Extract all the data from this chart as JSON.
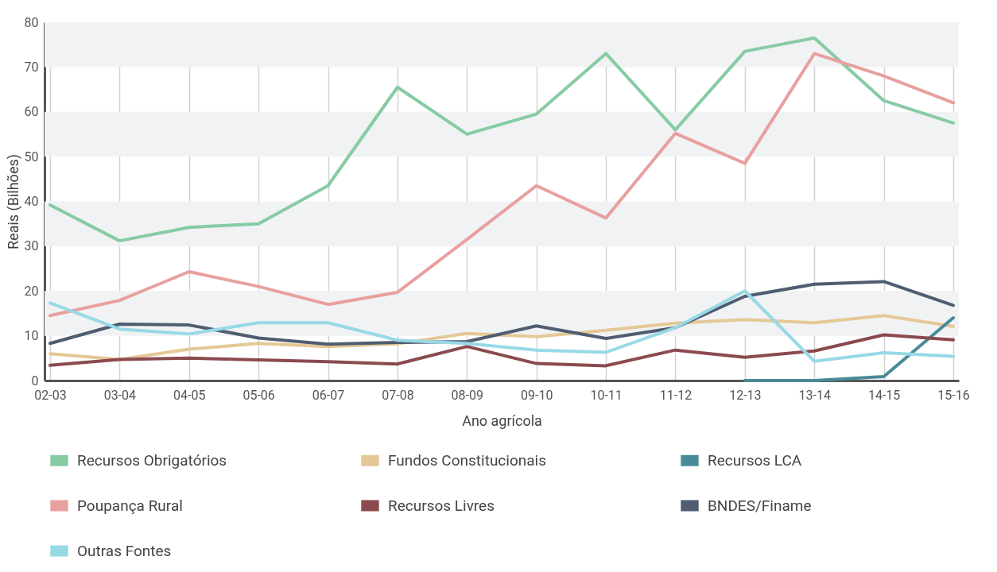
{
  "chart_data": {
    "type": "line",
    "xlabel": "Ano agrícola",
    "ylabel": "Reais (Bilhões)",
    "categories": [
      "02-03",
      "03-04",
      "04-05",
      "05-06",
      "06-07",
      "07-08",
      "08-09",
      "09-10",
      "10-11",
      "11-12",
      "12-13",
      "13-14",
      "14-15",
      "15-16"
    ],
    "ylim": [
      0,
      80
    ],
    "yticks": [
      0,
      10,
      20,
      30,
      40,
      50,
      60,
      70,
      80
    ],
    "grid": true,
    "legend": "bottom",
    "series": [
      {
        "name": "Recursos Obrigatórios",
        "color": "#86cba4",
        "values": [
          39.2,
          31.2,
          34.2,
          35,
          43.5,
          65.5,
          55,
          59.5,
          73,
          56,
          73.5,
          76.5,
          62.5,
          57.5
        ]
      },
      {
        "name": "Fundos Constitucionais",
        "color": "#e4c896",
        "values": [
          6,
          4.7,
          7,
          8.3,
          7.6,
          8.2,
          10.5,
          9.8,
          11.2,
          12.8,
          13.6,
          12.9,
          14.5,
          12.1
        ]
      },
      {
        "name": "Recursos LCA",
        "color": "#4a8a98",
        "values": [
          null,
          null,
          null,
          null,
          null,
          null,
          null,
          null,
          null,
          null,
          0,
          0,
          0.9,
          14
        ]
      },
      {
        "name": "Poupança Rural",
        "color": "#e8a09f",
        "values": [
          14.5,
          17.9,
          24.3,
          21,
          17,
          19.7,
          31.5,
          43.5,
          36.3,
          55.2,
          48.5,
          73,
          68,
          62
        ]
      },
      {
        "name": "Recursos Livres",
        "color": "#8b4a4e",
        "values": [
          3.4,
          4.7,
          5,
          4.6,
          4.2,
          3.7,
          7.6,
          3.8,
          3.3,
          6.8,
          5.2,
          6.6,
          10.2,
          9.1
        ]
      },
      {
        "name": "BNDES/Finame",
        "color": "#4f5d70",
        "values": [
          8.3,
          12.6,
          12.4,
          9.5,
          8.1,
          8.5,
          8.7,
          12.2,
          9.4,
          11.8,
          18.8,
          21.5,
          22.1,
          16.8
        ]
      },
      {
        "name": "Outras Fontes",
        "color": "#98d9e6",
        "values": [
          17.3,
          11.5,
          10.4,
          12.9,
          12.9,
          9,
          8.3,
          6.8,
          6.3,
          11.8,
          20,
          4.3,
          6.2,
          5.4
        ]
      }
    ]
  }
}
